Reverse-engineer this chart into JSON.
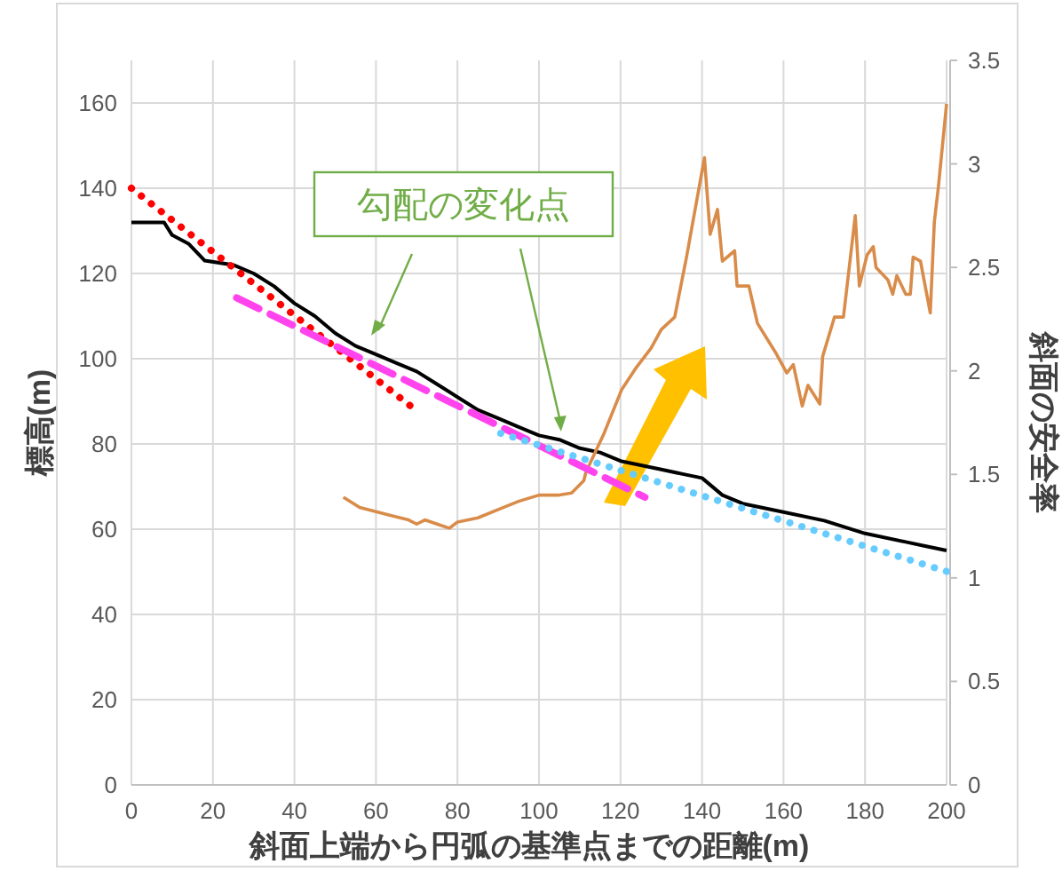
{
  "chart_data": {
    "type": "line",
    "xlabel": "斜面上端から円弧の基準点までの距離(m)",
    "ylabel": "標高(m)",
    "y2label": "斜面の安全率",
    "annotations": [
      {
        "text": "勾配の変化点",
        "x": 105.4,
        "y": 82.9
      }
    ],
    "xlim": [
      0,
      200
    ],
    "xticks": [
      0,
      20,
      40,
      60,
      80,
      100,
      120,
      140,
      160,
      180,
      200
    ],
    "ylim": [
      0,
      170
    ],
    "yticks": [
      0,
      20,
      40,
      60,
      80,
      100,
      120,
      140,
      160
    ],
    "y2lim": [
      0,
      3.5
    ],
    "y2ticks": [
      0,
      0.5,
      1,
      1.5,
      2,
      2.5,
      3,
      3.5
    ],
    "grid": true,
    "marker": "none",
    "series": [
      {
        "color": "#000000",
        "line_style": "solid",
        "x": [
          0,
          8,
          10,
          14,
          18,
          25,
          30,
          35,
          40,
          45,
          50,
          55,
          60,
          65,
          70,
          75,
          80,
          85,
          90,
          95,
          100,
          105,
          110,
          115,
          120,
          125,
          130,
          135,
          140,
          145,
          150,
          160,
          170,
          180,
          190,
          195,
          200
        ],
        "values": [
          132,
          132,
          129,
          127,
          123,
          122,
          120,
          117,
          113,
          110,
          106,
          103,
          101,
          99,
          97,
          94,
          91,
          88,
          86,
          84,
          82,
          81,
          79,
          78,
          76,
          75,
          74,
          73,
          72,
          68,
          66,
          64,
          62,
          59,
          57,
          56,
          55
        ]
      },
      {
        "color": "#d98c4a",
        "line_style": "solid",
        "axis": "y2",
        "x": [
          52,
          56,
          60,
          64,
          68,
          70,
          72,
          75,
          78,
          80,
          85,
          90,
          95,
          100,
          105,
          108,
          111,
          111.5,
          116,
          120.3,
          124,
          127.5,
          130,
          133.3,
          136.2,
          140.6,
          142,
          143.8,
          145,
          148,
          148.6,
          151.5,
          153.6,
          158,
          160.8,
          162.4,
          164.6,
          166,
          168.9,
          169.6,
          172.5,
          174.7,
          177.6,
          178.6,
          180.5,
          182,
          182.7,
          185.6,
          186.8,
          187.8,
          190,
          191.1,
          191.8,
          193.6,
          196,
          197,
          198,
          200
        ],
        "values": [
          1.39,
          1.34,
          1.32,
          1.3,
          1.28,
          1.26,
          1.28,
          1.26,
          1.24,
          1.27,
          1.29,
          1.33,
          1.37,
          1.4,
          1.4,
          1.41,
          1.47,
          1.51,
          1.7,
          1.91,
          2.02,
          2.11,
          2.2,
          2.26,
          2.55,
          3.03,
          2.66,
          2.78,
          2.53,
          2.58,
          2.41,
          2.41,
          2.23,
          2.09,
          1.99,
          2.03,
          1.83,
          1.93,
          1.84,
          2.07,
          2.26,
          2.26,
          2.75,
          2.41,
          2.56,
          2.6,
          2.5,
          2.44,
          2.37,
          2.46,
          2.37,
          2.37,
          2.55,
          2.53,
          2.28,
          2.72,
          2.89,
          3.29
        ]
      },
      {
        "color": "#ff0000",
        "line_style": "dotted",
        "x": [
          0,
          69.3
        ],
        "values": [
          140,
          88.3
        ]
      },
      {
        "color": "#ff44ee",
        "line_style": "dashed",
        "x": [
          25.8,
          126
        ],
        "values": [
          114.3,
          67.5
        ]
      },
      {
        "color": "#66ccff",
        "line_style": "dotted",
        "x": [
          90.6,
          200
        ],
        "values": [
          82.5,
          50.1
        ]
      }
    ]
  }
}
